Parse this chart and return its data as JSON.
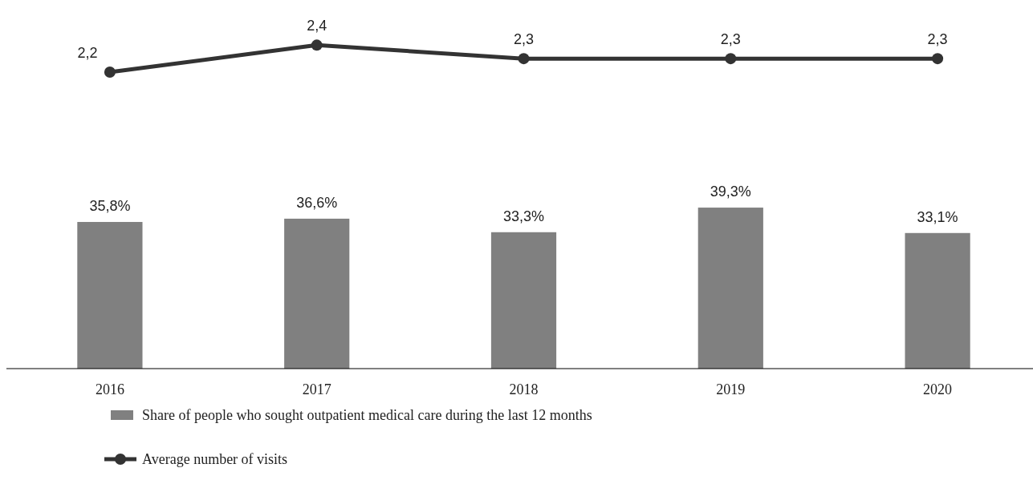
{
  "chart_data": [
    {
      "type": "line",
      "categories": [
        null,
        null,
        null,
        null,
        null
      ],
      "tick_labels": false,
      "legend": "bottom",
      "marker": "circle",
      "series": [
        {
          "name": "Average number of visits",
          "color": "#333333",
          "values": [
            2.2,
            2.4,
            2.3,
            2.3,
            2.3
          ],
          "value_labels": [
            "2,2",
            "2,4",
            "2,3",
            "2,3",
            "2,3"
          ]
        }
      ]
    },
    {
      "type": "bar",
      "categories": [
        "2016",
        "2017",
        "2018",
        "2019",
        "2020"
      ],
      "tick_labels": "x",
      "legend": "bottom",
      "series": [
        {
          "name": "Share of people who sought outpatient medical care during the last 12 months",
          "color": "#808080",
          "values": [
            35.8,
            36.6,
            33.3,
            39.3,
            33.1
          ],
          "value_labels": [
            "35,8%",
            "36,6%",
            "33,3%",
            "39,3%",
            "33,1%"
          ]
        }
      ]
    }
  ]
}
